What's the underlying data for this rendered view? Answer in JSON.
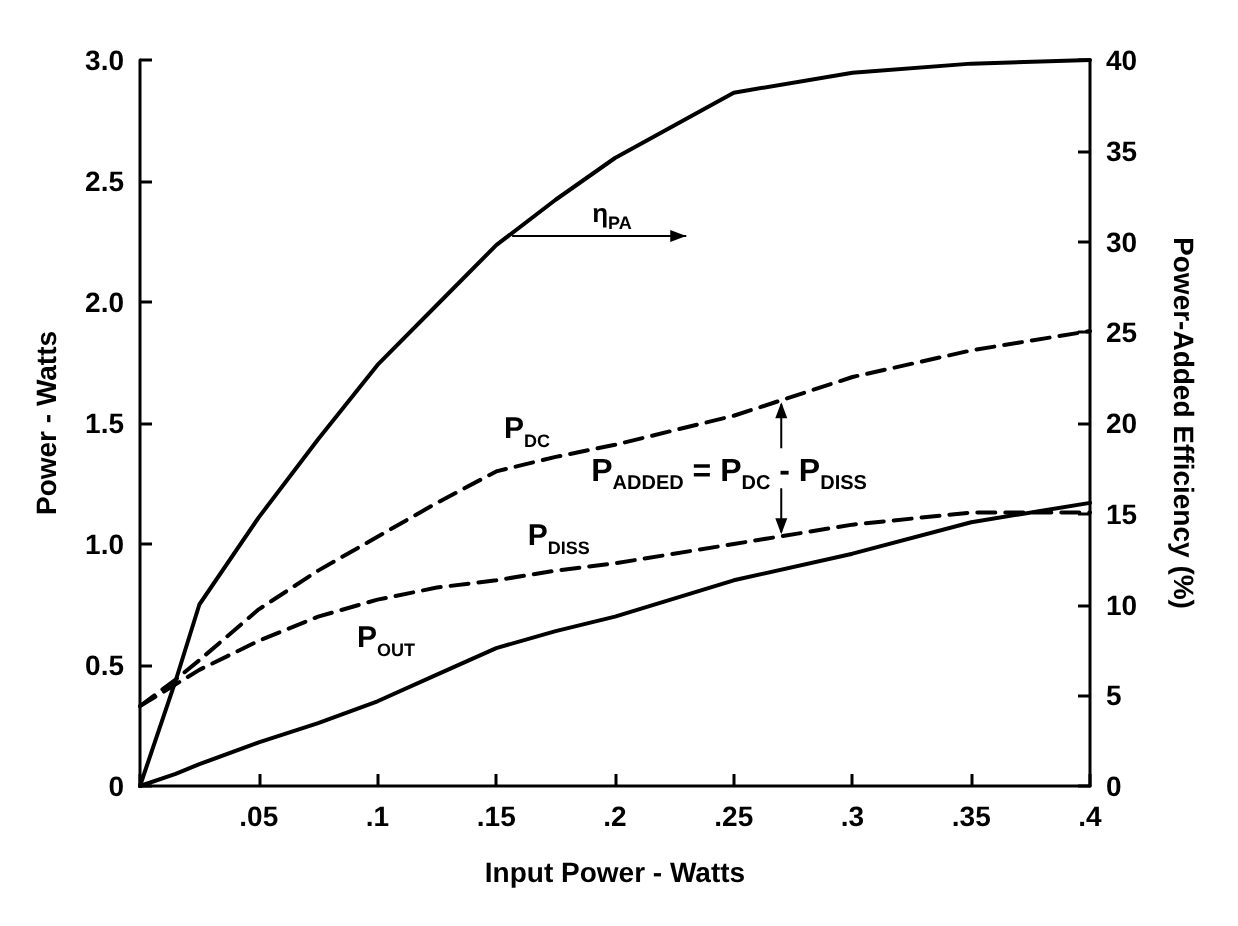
{
  "chart_data": {
    "type": "line",
    "xlabel": "Input Power - Watts",
    "ylabel": "Power - Watts",
    "y2label": "Power-Added Efficiency (%)",
    "x": [
      0,
      0.015,
      0.025,
      0.05,
      0.075,
      0.1,
      0.125,
      0.15,
      0.175,
      0.2,
      0.25,
      0.3,
      0.35,
      0.4
    ],
    "series": [
      {
        "name": "η$_{PA}$",
        "color": "#000000",
        "axis": "y2",
        "line_style": "solid",
        "values": [
          0,
          5.8,
          10.0,
          14.8,
          19.1,
          23.2,
          26.5,
          29.8,
          32.3,
          34.6,
          38.2,
          39.3,
          39.8,
          40
        ]
      },
      {
        "name": "P$_{DC}$",
        "color": "#000000",
        "line_style": "dashed",
        "values": [
          0.33,
          0.44,
          0.52,
          0.73,
          0.89,
          1.03,
          1.17,
          1.3,
          1.36,
          1.41,
          1.53,
          1.69,
          1.8,
          1.88
        ]
      },
      {
        "name": "P$_{DISS}$",
        "color": "#000000",
        "line_style": "dashed",
        "values": [
          0.33,
          0.42,
          0.48,
          0.6,
          0.7,
          0.77,
          0.82,
          0.85,
          0.89,
          0.92,
          1.0,
          1.08,
          1.13,
          1.13
        ]
      },
      {
        "name": "P$_{OUT}$",
        "color": "#000000",
        "line_style": "solid",
        "values": [
          0,
          0.05,
          0.09,
          0.18,
          0.26,
          0.35,
          0.46,
          0.57,
          0.64,
          0.7,
          0.85,
          0.96,
          1.09,
          1.17
        ]
      }
    ],
    "annotations": [
      "P$_{ADDED}$ = P$_{DC}$ - P$_{DISS}$"
    ],
    "xlim": [
      0,
      0.4
    ],
    "xticks": [
      {
        "value": 0,
        "label": null
      },
      {
        "value": 0.05,
        "label": ".05"
      },
      {
        "value": 0.1,
        "label": ".1"
      },
      {
        "value": 0.15,
        "label": ".15"
      },
      {
        "value": 0.2,
        "label": ".2"
      },
      {
        "value": 0.25,
        "label": ".25"
      },
      {
        "value": 0.3,
        "label": ".3"
      },
      {
        "value": 0.35,
        "label": ".35"
      },
      {
        "value": 0.4,
        "label": ".4"
      }
    ],
    "ylim": [
      0,
      3
    ],
    "yticks": [
      0,
      0.5,
      {
        "value": 1,
        "label": "1.0"
      },
      1.5,
      {
        "value": 2,
        "label": "2.0"
      },
      2.5,
      {
        "value": 3,
        "label": "3.0"
      }
    ],
    "y2lim": [
      0,
      40
    ],
    "y2ticks": [
      0,
      5,
      10,
      15,
      20,
      25,
      30,
      35,
      40
    ],
    "marker": "none",
    "grid": false,
    "legend": false
  }
}
